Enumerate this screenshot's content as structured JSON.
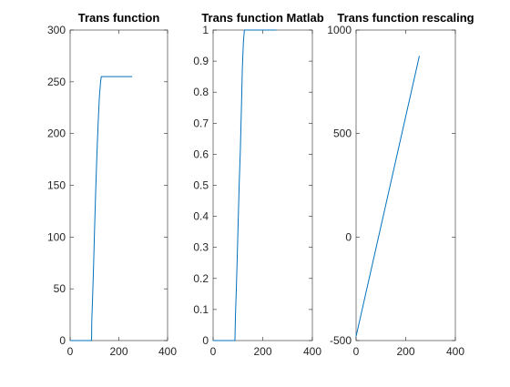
{
  "figure": {
    "background": "#ffffff",
    "line_color": "#0072bd",
    "axis_color": "#262626"
  },
  "chart_data": [
    {
      "type": "line",
      "title": "Trans function",
      "xlabel": "",
      "ylabel": "",
      "xlim": [
        0,
        400
      ],
      "ylim": [
        0,
        300
      ],
      "xticks": [
        0,
        200,
        400
      ],
      "yticks": [
        0,
        50,
        100,
        150,
        200,
        250,
        300
      ],
      "grid": false,
      "series": [
        {
          "x": [
            0,
            88,
            89,
            92,
            96,
            100,
            105,
            110,
            115,
            120,
            125,
            128,
            130,
            255
          ],
          "y": [
            0,
            0,
            20,
            40,
            70,
            105,
            145,
            180,
            210,
            235,
            250,
            255,
            255,
            255
          ]
        }
      ]
    },
    {
      "type": "line",
      "title": "Trans function Matlab",
      "xlabel": "",
      "ylabel": "",
      "xlim": [
        0,
        400
      ],
      "ylim": [
        0,
        1
      ],
      "xticks": [
        0,
        200,
        400
      ],
      "yticks": [
        0,
        0.1,
        0.2,
        0.3,
        0.4,
        0.5,
        0.6,
        0.7,
        0.8,
        0.9,
        1
      ],
      "grid": false,
      "series": [
        {
          "x": [
            0,
            88,
            90,
            93,
            97,
            101,
            105,
            110,
            115,
            118,
            122,
            126,
            130,
            255
          ],
          "y": [
            0,
            0,
            0.08,
            0.15,
            0.26,
            0.38,
            0.5,
            0.62,
            0.78,
            0.88,
            0.96,
            1.0,
            1.0,
            1.0
          ]
        }
      ]
    },
    {
      "type": "line",
      "title": "Trans function rescaling",
      "xlabel": "",
      "ylabel": "",
      "xlim": [
        0,
        400
      ],
      "ylim": [
        -500,
        1000
      ],
      "xticks": [
        0,
        200,
        400
      ],
      "yticks": [
        -500,
        0,
        500,
        1000
      ],
      "grid": false,
      "series": [
        {
          "x": [
            0,
            255
          ],
          "y": [
            -480,
            875
          ]
        }
      ]
    }
  ]
}
